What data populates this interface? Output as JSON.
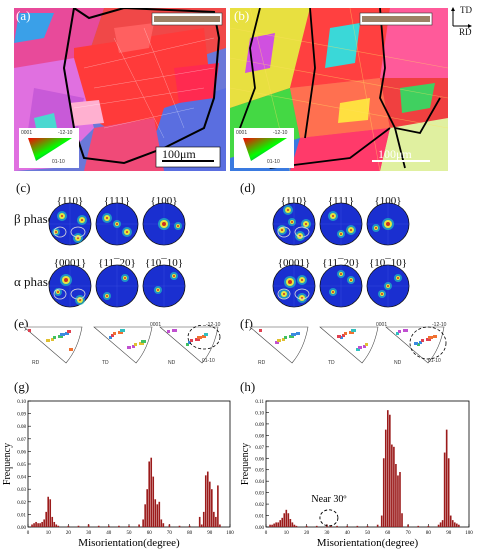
{
  "panels": {
    "a": "(a)",
    "b": "(b)",
    "c": "(c)",
    "d": "(d)",
    "e": "(e)",
    "f": "(f)",
    "g": "(g)",
    "h": "(h)"
  },
  "ebsd": {
    "scale_a": "100μm",
    "scale_b": "100μm",
    "axes": {
      "td": "TD",
      "rd": "RD"
    },
    "ipf_key": {
      "top_left": "0001",
      "top_right": "-12-10",
      "bottom_right": "01-10"
    }
  },
  "pole_figures": {
    "beta_label": "β phase",
    "alpha_label": "α phase",
    "beta_titles": [
      "{110}",
      "{111}",
      "{100}"
    ],
    "alpha_titles": [
      "{0001}",
      "{11¯20}",
      "{10¯10}"
    ]
  },
  "ipf": {
    "labels": [
      "RD",
      "TD",
      "ND"
    ],
    "key": {
      "top_left": "0001",
      "top_right": "-12-10",
      "bottom_right": "01-10"
    }
  },
  "histograms": {
    "ylabel": "Frequency",
    "xlabel": "Misorientation(degree)",
    "annotation_h": "Near 30º"
  },
  "chart_data": [
    {
      "type": "bar",
      "title": "",
      "xlabel": "Misorientation(degree)",
      "ylabel": "Frequency",
      "xlim": [
        0,
        100
      ],
      "ylim": [
        0,
        0.1
      ],
      "xticks": [
        0,
        10,
        20,
        30,
        40,
        50,
        60,
        70,
        80,
        90,
        100
      ],
      "yticks": [
        0.0,
        0.01,
        0.02,
        0.03,
        0.04,
        0.05,
        0.06,
        0.07,
        0.08,
        0.09,
        0.1
      ],
      "x": [
        2,
        3,
        4,
        5,
        6,
        7,
        8,
        9,
        10,
        11,
        12,
        13,
        14,
        15,
        20,
        25,
        30,
        35,
        40,
        45,
        50,
        55,
        57,
        58,
        59,
        60,
        61,
        62,
        63,
        64,
        65,
        66,
        67,
        70,
        75,
        80,
        85,
        86,
        87,
        88,
        89,
        90,
        91,
        92,
        93,
        94,
        95
      ],
      "values": [
        0.002,
        0.003,
        0.004,
        0.003,
        0.003,
        0.004,
        0.006,
        0.012,
        0.024,
        0.022,
        0.008,
        0.004,
        0.002,
        0.001,
        0.001,
        0.001,
        0.002,
        0.001,
        0.001,
        0.001,
        0.001,
        0.002,
        0.006,
        0.018,
        0.03,
        0.052,
        0.055,
        0.04,
        0.022,
        0.018,
        0.02,
        0.006,
        0.003,
        0.002,
        0.001,
        0.001,
        0.008,
        0.002,
        0.012,
        0.041,
        0.044,
        0.036,
        0.03,
        0.012,
        0.008,
        0.033,
        0.002
      ]
    },
    {
      "type": "bar",
      "title": "",
      "xlabel": "Misorientation(degree)",
      "ylabel": "Frequency",
      "xlim": [
        0,
        100
      ],
      "ylim": [
        0,
        0.11
      ],
      "xticks": [
        0,
        10,
        20,
        30,
        40,
        50,
        60,
        70,
        80,
        90,
        100
      ],
      "yticks": [
        0.0,
        0.01,
        0.02,
        0.03,
        0.04,
        0.05,
        0.06,
        0.07,
        0.08,
        0.09,
        0.1,
        0.11
      ],
      "x": [
        2,
        3,
        4,
        5,
        6,
        7,
        8,
        9,
        10,
        11,
        12,
        13,
        14,
        15,
        20,
        25,
        30,
        32,
        35,
        40,
        45,
        50,
        55,
        57,
        58,
        59,
        60,
        61,
        62,
        63,
        64,
        65,
        66,
        67,
        70,
        75,
        80,
        85,
        86,
        87,
        88,
        89,
        90,
        91,
        92,
        93,
        94,
        95
      ],
      "values": [
        0.002,
        0.002,
        0.003,
        0.004,
        0.004,
        0.006,
        0.008,
        0.012,
        0.015,
        0.012,
        0.007,
        0.004,
        0.002,
        0.001,
        0.001,
        0.001,
        0.002,
        0.001,
        0.001,
        0.001,
        0.001,
        0.001,
        0.002,
        0.01,
        0.06,
        0.085,
        0.102,
        0.098,
        0.072,
        0.07,
        0.055,
        0.045,
        0.048,
        0.012,
        0.002,
        0.001,
        0.001,
        0.002,
        0.004,
        0.006,
        0.065,
        0.085,
        0.06,
        0.01,
        0.006,
        0.004,
        0.003,
        0.002
      ]
    }
  ]
}
